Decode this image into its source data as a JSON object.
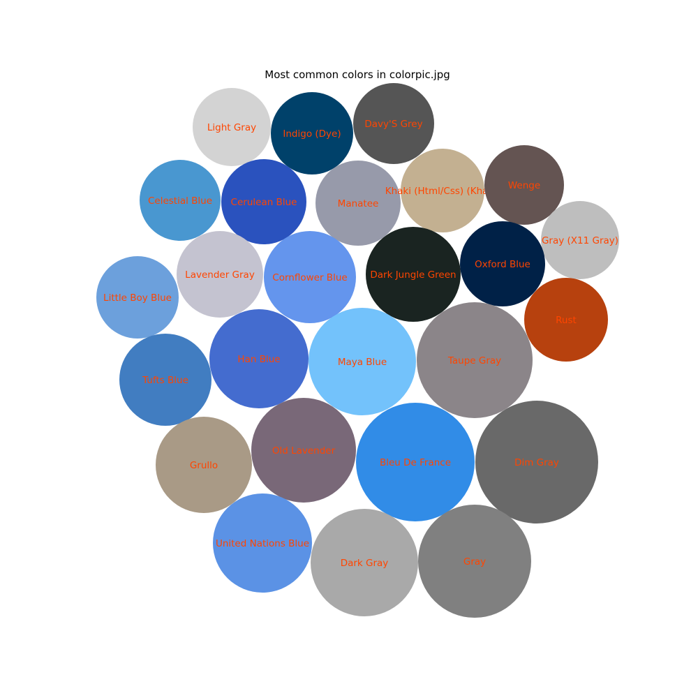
{
  "chart_data": {
    "type": "bubble",
    "title": "Most common colors in colorpic.jpg",
    "label_color": "#ff4500",
    "bubbles": [
      {
        "label": "Light Gray",
        "color": "#d3d3d3",
        "value": 12.4
      },
      {
        "label": "Indigo (Dye)",
        "color": "#00416a",
        "value": 13.7
      },
      {
        "label": "Davy'S Grey",
        "color": "#555555",
        "value": 13.4
      },
      {
        "label": "Celestial Blue",
        "color": "#4997d0",
        "value": 13.2
      },
      {
        "label": "Cerulean Blue",
        "color": "#2a52be",
        "value": 14.6
      },
      {
        "label": "Manatee",
        "color": "#979aaa",
        "value": 14.6
      },
      {
        "label": "Khaki (Html/Css) (Khaki)",
        "color": "#c3b091",
        "value": 14.2
      },
      {
        "label": "Wenge",
        "color": "#645452",
        "value": 12.9
      },
      {
        "label": "Gray (X11 Gray)",
        "color": "#bebebe",
        "value": 12.4
      },
      {
        "label": "Lavender Gray",
        "color": "#c4c3d0",
        "value": 15.1
      },
      {
        "label": "Cornflower Blue",
        "color": "#6495ed",
        "value": 17.2
      },
      {
        "label": "Dark Jungle Green",
        "color": "#1a2421",
        "value": 18.4
      },
      {
        "label": "Oxford Blue",
        "color": "#002147",
        "value": 14.6
      },
      {
        "label": "Little Boy Blue",
        "color": "#6ca0dc",
        "value": 14.0
      },
      {
        "label": "Rust",
        "color": "#b7410e",
        "value": 14.2
      },
      {
        "label": "Han Blue",
        "color": "#446ccf",
        "value": 20.0
      },
      {
        "label": "Maya Blue",
        "color": "#73c2fb",
        "value": 23.4
      },
      {
        "label": "Taupe Gray",
        "color": "#8b8589",
        "value": 27.8
      },
      {
        "label": "Tufts Blue",
        "color": "#417dc1",
        "value": 17.2
      },
      {
        "label": "Grullo",
        "color": "#a99a86",
        "value": 18.8
      },
      {
        "label": "Old Lavender",
        "color": "#796878",
        "value": 22.5
      },
      {
        "label": "Bleu De France",
        "color": "#318ce7",
        "value": 28.9
      },
      {
        "label": "Dim Gray",
        "color": "#696969",
        "value": 30.4
      },
      {
        "label": "United Nations Blue",
        "color": "#5b92e5",
        "value": 20.2
      },
      {
        "label": "Dark Gray",
        "color": "#a9a9a9",
        "value": 23.4
      },
      {
        "label": "Gray",
        "color": "#808080",
        "value": 25.8
      }
    ]
  }
}
